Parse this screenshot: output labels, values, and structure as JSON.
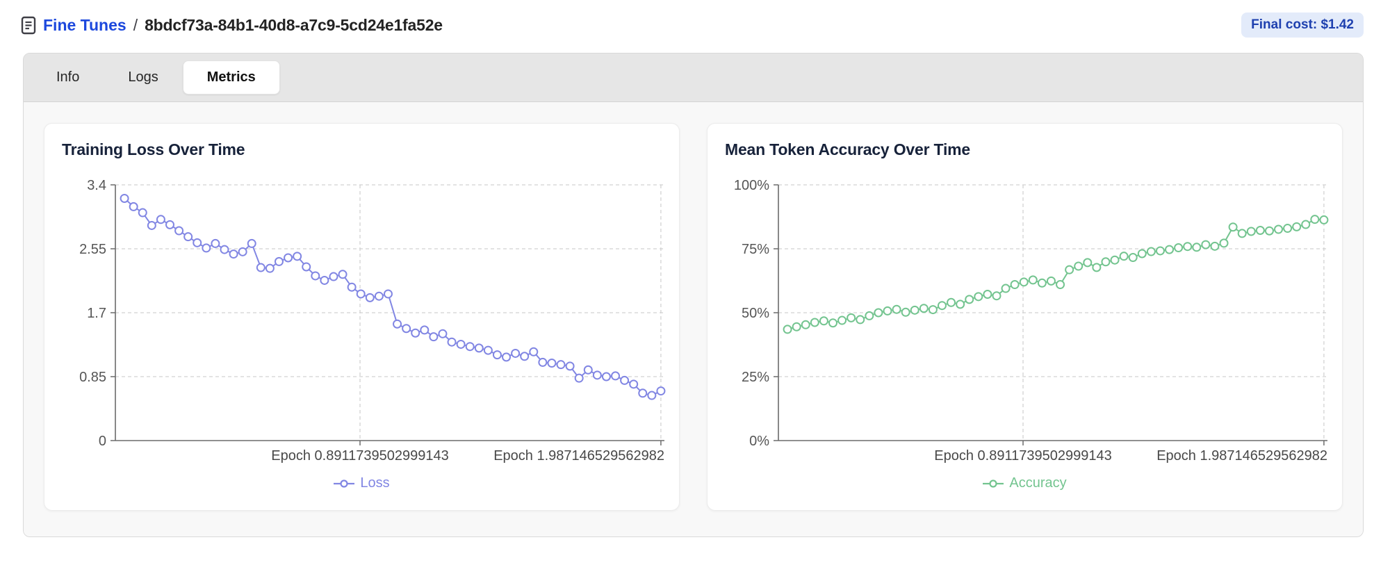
{
  "header": {
    "breadcrumb_section": "Fine Tunes",
    "breadcrumb_separator": "/",
    "breadcrumb_id": "8bdcf73a-84b1-40d8-a7c9-5cd24e1fa52e",
    "cost_badge": "Final cost: $1.42"
  },
  "tabs": [
    {
      "label": "Info",
      "active": false
    },
    {
      "label": "Logs",
      "active": false
    },
    {
      "label": "Metrics",
      "active": true
    }
  ],
  "colors": {
    "loss_line": "#8186e3",
    "accuracy_line": "#73c48f",
    "link": "#1c48dd",
    "badge_bg": "#e3ebfa",
    "badge_text": "#1e40af",
    "grid_line": "#d2d2d2",
    "axis_line": "#6b6b6b",
    "y_tick_label": "#555555",
    "x_tick_label": "#484848",
    "title": "#17223a"
  },
  "chart_data": [
    {
      "type": "line",
      "title": "Training Loss Over Time",
      "xlabel": "",
      "ylabel": "",
      "x_range": [
        0,
        2.0
      ],
      "x_ticks": [
        {
          "label": "Epoch 0.8911739502999143",
          "epoch": 0.8911739502999143
        },
        {
          "label": "Epoch 1.987146529562982",
          "epoch": 1.987146529562982
        }
      ],
      "y_max": 3.4,
      "y_tick_values": [
        3.4,
        2.55,
        1.7,
        0.85,
        0
      ],
      "y_ticks": [
        "3.4",
        "2.55",
        "1.7",
        "0.85",
        "0"
      ],
      "grid": "dashed",
      "legend_position": "bottom",
      "series": [
        {
          "name": "Loss",
          "color": "#8186e3",
          "values": [
            3.22,
            3.11,
            3.03,
            2.86,
            2.94,
            2.87,
            2.79,
            2.71,
            2.63,
            2.56,
            2.62,
            2.54,
            2.48,
            2.51,
            2.62,
            2.3,
            2.29,
            2.38,
            2.43,
            2.45,
            2.31,
            2.19,
            2.13,
            2.18,
            2.21,
            2.04,
            1.95,
            1.9,
            1.92,
            1.95,
            1.55,
            1.49,
            1.43,
            1.47,
            1.38,
            1.42,
            1.31,
            1.28,
            1.25,
            1.23,
            1.2,
            1.14,
            1.11,
            1.16,
            1.12,
            1.18,
            1.04,
            1.03,
            1.01,
            0.99,
            0.83,
            0.94,
            0.87,
            0.85,
            0.86,
            0.8,
            0.75,
            0.63,
            0.6,
            0.66
          ]
        }
      ]
    },
    {
      "type": "line",
      "title": "Mean Token Accuracy Over Time",
      "xlabel": "",
      "ylabel": "",
      "x_range": [
        0,
        2.0
      ],
      "x_ticks": [
        {
          "label": "Epoch 0.8911739502999143",
          "epoch": 0.8911739502999143
        },
        {
          "label": "Epoch 1.987146529562982",
          "epoch": 1.987146529562982
        }
      ],
      "y_max": 100,
      "y_tick_values": [
        100,
        75,
        50,
        25,
        0
      ],
      "y_ticks": [
        "100%",
        "75%",
        "50%",
        "25%",
        "0%"
      ],
      "grid": "dashed",
      "legend_position": "bottom",
      "series": [
        {
          "name": "Accuracy",
          "color": "#73c48f",
          "values": [
            43.5,
            44.5,
            45.3,
            46.2,
            46.8,
            46.0,
            47.0,
            48.0,
            47.3,
            48.8,
            50.0,
            50.7,
            51.3,
            50.2,
            51.0,
            51.7,
            51.2,
            52.8,
            54.0,
            53.3,
            55.2,
            56.3,
            57.2,
            56.6,
            59.5,
            61.0,
            62.0,
            62.8,
            61.6,
            62.4,
            61.0,
            66.8,
            68.2,
            69.6,
            67.7,
            69.9,
            70.6,
            72.1,
            71.6,
            73.1,
            73.9,
            74.2,
            74.7,
            75.4,
            75.9,
            75.6,
            76.6,
            76.0,
            77.2,
            83.5,
            81.0,
            81.8,
            82.2,
            82.0,
            82.6,
            83.0,
            83.6,
            84.5,
            86.5,
            86.3
          ]
        }
      ]
    }
  ]
}
